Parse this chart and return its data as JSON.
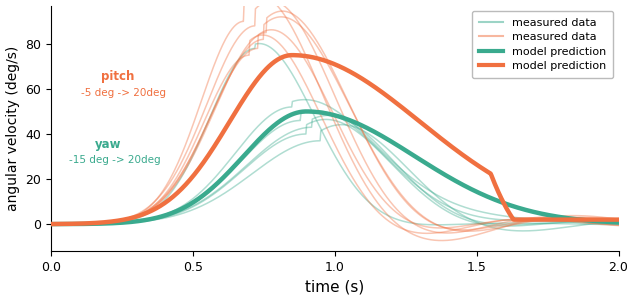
{
  "teal_color": "#3aaa8e",
  "orange_color": "#f07040",
  "teal_measured_alpha": 0.4,
  "orange_measured_alpha": 0.4,
  "xlim": [
    0.0,
    2.0
  ],
  "ylim": [
    -12,
    97
  ],
  "xlabel": "time (s)",
  "ylabel": "angular velocity (deg/s)",
  "yticks": [
    0,
    20,
    40,
    60,
    80
  ],
  "xticks": [
    0.0,
    0.5,
    1.0,
    1.5,
    2.0
  ],
  "legend_labels": [
    "measured data",
    "measured data",
    "model prediction",
    "model prediction"
  ],
  "pitch_label": "pitch",
  "pitch_range": "-5 deg -> 20deg",
  "yaw_label": "yaw",
  "yaw_range": "-15 deg -> 20deg",
  "background_color": "#ffffff"
}
